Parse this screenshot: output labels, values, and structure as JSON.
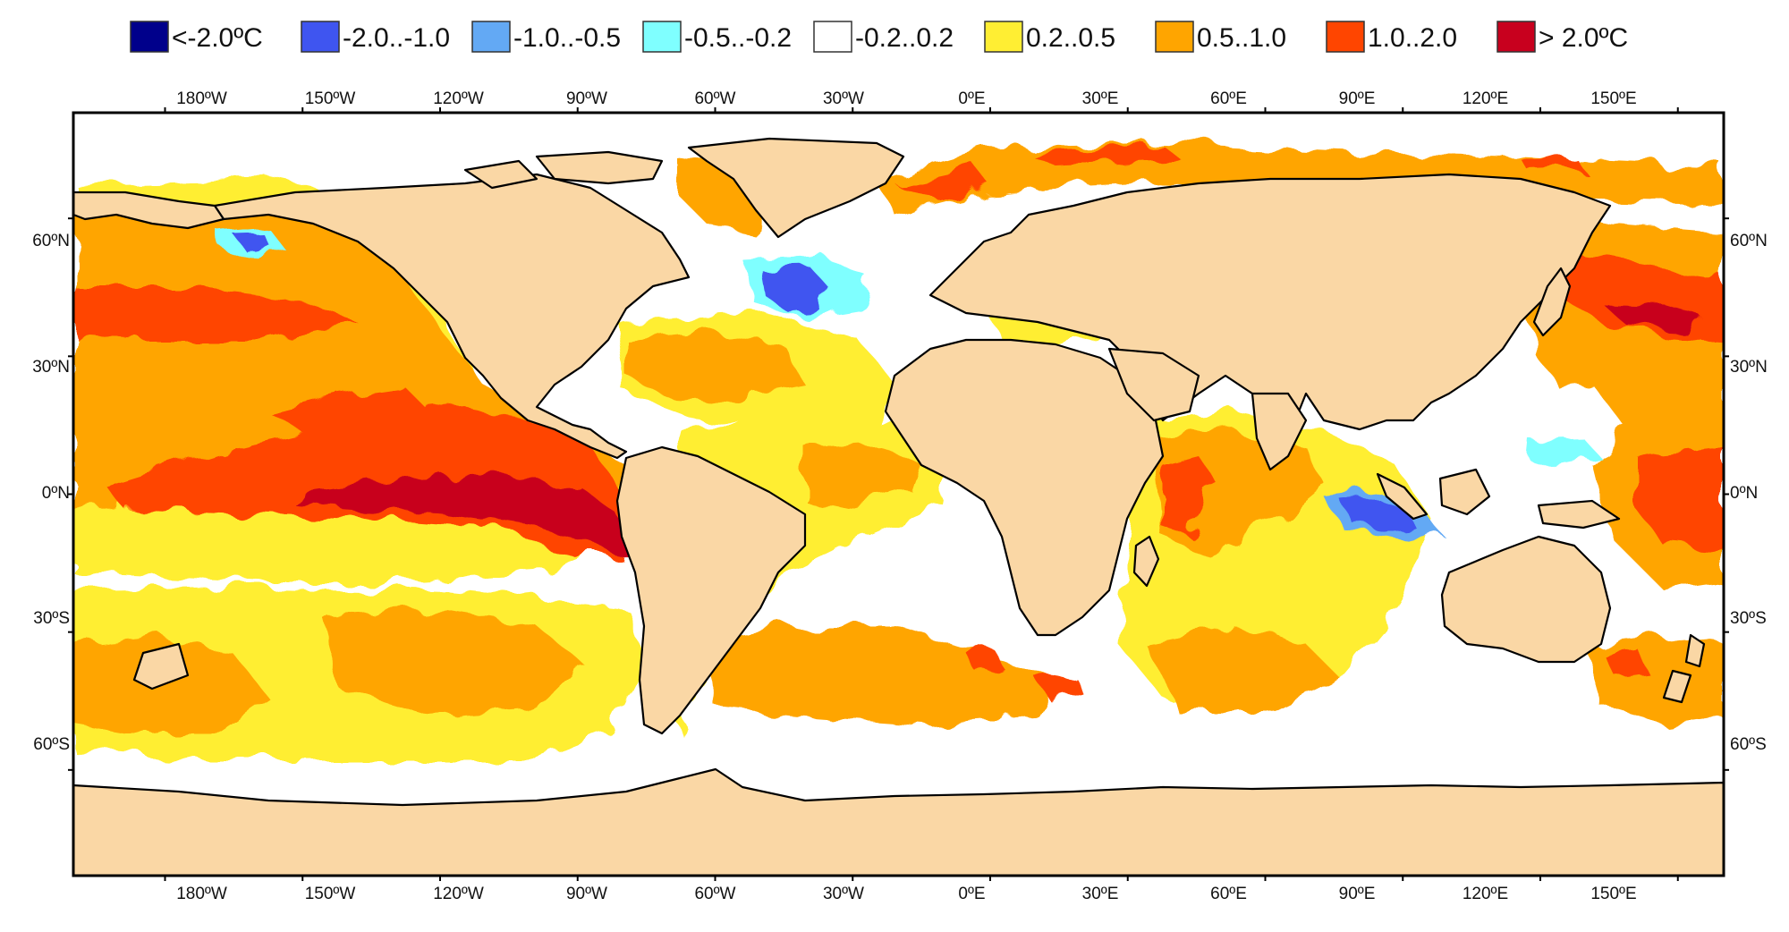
{
  "legend": [
    {
      "label": "<-2.0ºC",
      "color": "#00008B"
    },
    {
      "label": "-2.0..-1.0",
      "color": "#3F55F0"
    },
    {
      "label": "-1.0..-0.5",
      "color": "#63A9F4"
    },
    {
      "label": "-0.5..-0.2",
      "color": "#7FFFFF"
    },
    {
      "label": "-0.2..0.2",
      "color": "#FFFFFF"
    },
    {
      "label": "0.2..0.5",
      "color": "#FFEE33"
    },
    {
      "label": "0.5..1.0",
      "color": "#FFA500"
    },
    {
      "label": "1.0..2.0",
      "color": "#FF4500"
    },
    {
      "label": "> 2.0ºC",
      "color": "#C8001E"
    }
  ],
  "map": {
    "projection": "equirectangular",
    "lon_range": [
      -200,
      160
    ],
    "lat_range": [
      -83,
      83
    ],
    "land_color": "#FAD7A5",
    "ocean_color": "#FFFFFF",
    "lon_ticks": [
      {
        "lon": -180,
        "label": "180ºW"
      },
      {
        "lon": -150,
        "label": "150ºW"
      },
      {
        "lon": -120,
        "label": "120ºW"
      },
      {
        "lon": -90,
        "label": "90ºW"
      },
      {
        "lon": -60,
        "label": "60ºW"
      },
      {
        "lon": -30,
        "label": "30ºW"
      },
      {
        "lon": 0,
        "label": "0ºE"
      },
      {
        "lon": 30,
        "label": "30ºE"
      },
      {
        "lon": 60,
        "label": "60ºE"
      },
      {
        "lon": 90,
        "label": "90ºE"
      },
      {
        "lon": 120,
        "label": "120ºE"
      },
      {
        "lon": 150,
        "label": "150ºE"
      }
    ],
    "lat_ticks": [
      {
        "lat": 60,
        "label": "60ºN"
      },
      {
        "lat": 30,
        "label": "30ºN"
      },
      {
        "lat": 0,
        "label": "0ºN"
      },
      {
        "lat": -30,
        "label": "30ºS"
      },
      {
        "lat": -60,
        "label": "60ºS"
      }
    ]
  }
}
